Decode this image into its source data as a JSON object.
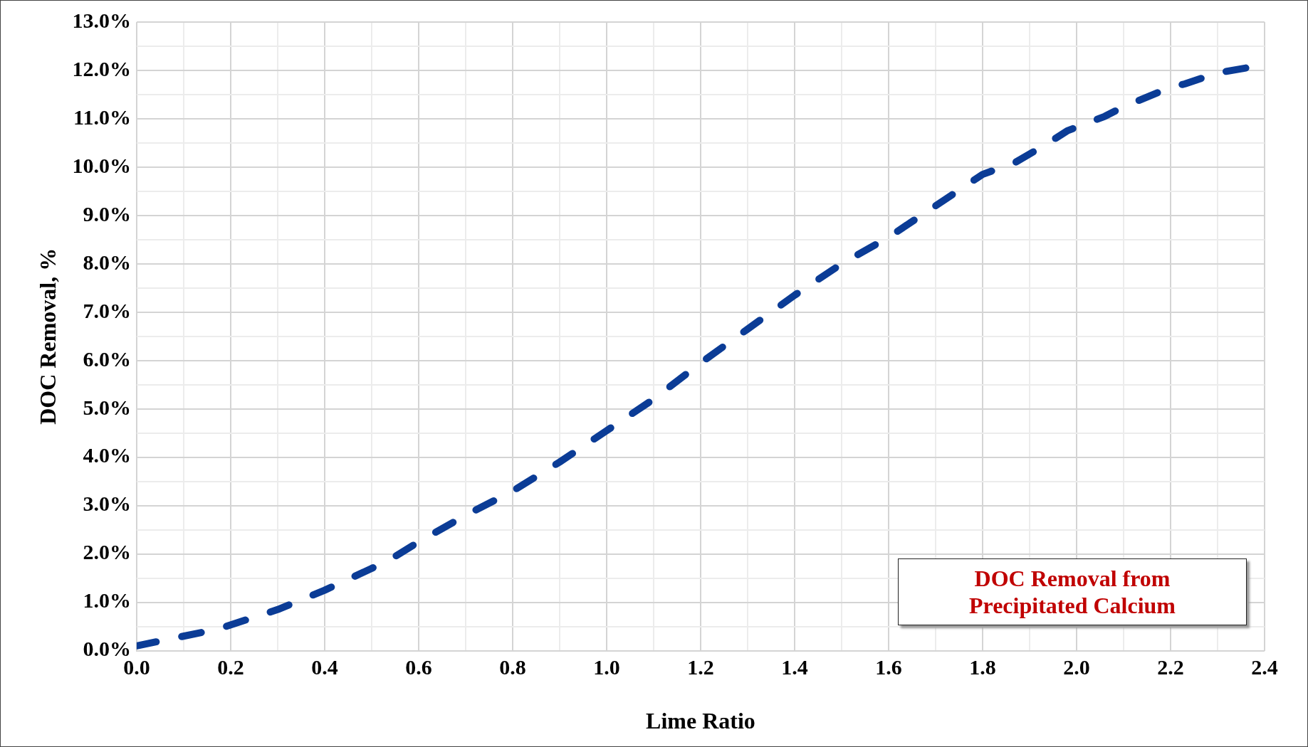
{
  "chart_data": {
    "type": "line",
    "xlabel": "Lime Ratio",
    "ylabel": "DOC Removal, %",
    "annotations": [
      "DOC Removal from Precipitated Calcium"
    ],
    "x": [
      0,
      0.05,
      0.15,
      0.19,
      0.3,
      0.4,
      0.5,
      0.55,
      0.6,
      0.7,
      0.8,
      0.9,
      1.0,
      1.1,
      1.2,
      1.3,
      1.4,
      1.5,
      1.6,
      1.7,
      1.8,
      1.87,
      1.94,
      1.98,
      2.06,
      2.1,
      2.2,
      2.23,
      2.3,
      2.36
    ],
    "series": [
      {
        "color": "#0b3c96",
        "values": [
          0.1,
          0.2,
          0.4,
          0.5,
          0.85,
          1.25,
          1.7,
          1.95,
          2.25,
          2.8,
          3.3,
          3.9,
          4.55,
          5.2,
          5.95,
          6.65,
          7.35,
          8.0,
          8.55,
          9.2,
          9.85,
          10.1,
          10.5,
          10.75,
          11.05,
          11.25,
          11.65,
          11.72,
          11.95,
          12.05
        ]
      }
    ],
    "xlim": [
      0,
      2.4
    ],
    "ylim": [
      0,
      13
    ],
    "xticks": [
      {
        "value": 0,
        "label": "0.0"
      },
      {
        "value": 0.1,
        "label": null
      },
      {
        "value": 0.2,
        "label": "0.2"
      },
      {
        "value": 0.3,
        "label": null
      },
      {
        "value": 0.4,
        "label": "0.4"
      },
      {
        "value": 0.5,
        "label": null
      },
      {
        "value": 0.6,
        "label": "0.6"
      },
      {
        "value": 0.7,
        "label": null
      },
      {
        "value": 0.8,
        "label": "0.8"
      },
      {
        "value": 0.9,
        "label": null
      },
      {
        "value": 1,
        "label": "1.0"
      },
      {
        "value": 1.1,
        "label": null
      },
      {
        "value": 1.2,
        "label": "1.2"
      },
      {
        "value": 1.3,
        "label": null
      },
      {
        "value": 1.4,
        "label": "1.4"
      },
      {
        "value": 1.5,
        "label": null
      },
      {
        "value": 1.6,
        "label": "1.6"
      },
      {
        "value": 1.7,
        "label": null
      },
      {
        "value": 1.8,
        "label": "1.8"
      },
      {
        "value": 1.9,
        "label": null
      },
      {
        "value": 2,
        "label": "2.0"
      },
      {
        "value": 2.1,
        "label": null
      },
      {
        "value": 2.2,
        "label": "2.2"
      },
      {
        "value": 2.3,
        "label": null
      },
      {
        "value": 2.4,
        "label": "2.4"
      }
    ],
    "yticks": [
      {
        "value": 0,
        "label": "0.0%"
      },
      {
        "value": 0.5,
        "label": null
      },
      {
        "value": 1,
        "label": "1.0%"
      },
      {
        "value": 1.5,
        "label": null
      },
      {
        "value": 2,
        "label": "2.0%"
      },
      {
        "value": 2.5,
        "label": null
      },
      {
        "value": 3,
        "label": "3.0%"
      },
      {
        "value": 3.5,
        "label": null
      },
      {
        "value": 4,
        "label": "4.0%"
      },
      {
        "value": 4.5,
        "label": null
      },
      {
        "value": 5,
        "label": "5.0%"
      },
      {
        "value": 5.5,
        "label": null
      },
      {
        "value": 6,
        "label": "6.0%"
      },
      {
        "value": 6.5,
        "label": null
      },
      {
        "value": 7,
        "label": "7.0%"
      },
      {
        "value": 7.5,
        "label": null
      },
      {
        "value": 8,
        "label": "8.0%"
      },
      {
        "value": 8.5,
        "label": null
      },
      {
        "value": 9,
        "label": "9.0%"
      },
      {
        "value": 9.5,
        "label": null
      },
      {
        "value": 10,
        "label": "10.0%"
      },
      {
        "value": 10.5,
        "label": null
      },
      {
        "value": 11,
        "label": "11.0%"
      },
      {
        "value": 11.5,
        "label": null
      },
      {
        "value": 12,
        "label": "12.0%"
      },
      {
        "value": 12.5,
        "label": null
      },
      {
        "value": 13,
        "label": "13.0%"
      }
    ],
    "grid": true,
    "legend": false,
    "marker": "none",
    "line_style": "dashed"
  }
}
